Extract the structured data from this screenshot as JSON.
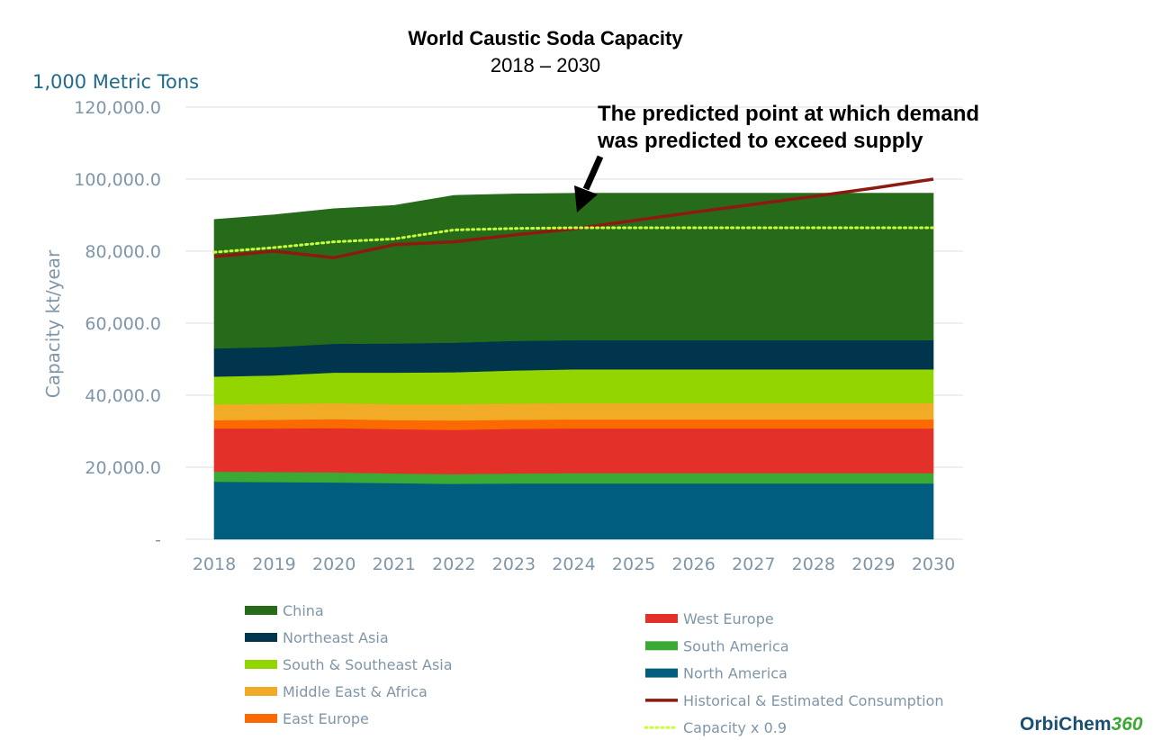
{
  "chart_data": {
    "type": "area",
    "title": "World Caustic Soda Capacity",
    "subtitle": "2018 – 2030",
    "units_label": "1,000 Metric Tons",
    "ylabel": "Capacity kt/year",
    "xlabel": "",
    "ylim": [
      0,
      120000
    ],
    "yticks": [
      0,
      20000,
      40000,
      60000,
      80000,
      100000,
      120000
    ],
    "ytick_labels": [
      "-",
      "20,000.0",
      "40,000.0",
      "60,000.0",
      "80,000.0",
      "100,000.0",
      "120,000.0"
    ],
    "x": [
      "2018",
      "2019",
      "2020",
      "2021",
      "2022",
      "2023",
      "2024",
      "2025",
      "2026",
      "2027",
      "2028",
      "2029",
      "2030"
    ],
    "grid": "horizontal",
    "stacked_series": [
      {
        "name": "North America",
        "color": "#005d7e",
        "values": [
          16000,
          15900,
          15800,
          15600,
          15400,
          15500,
          15500,
          15500,
          15500,
          15500,
          15500,
          15500,
          15500
        ]
      },
      {
        "name": "South America",
        "color": "#3aaa35",
        "values": [
          2800,
          2800,
          2800,
          2700,
          2700,
          2800,
          2900,
          2900,
          2900,
          2900,
          2900,
          2900,
          2900
        ]
      },
      {
        "name": "West Europe",
        "color": "#e3312a",
        "values": [
          12000,
          12100,
          12300,
          12300,
          12300,
          12400,
          12400,
          12400,
          12400,
          12400,
          12400,
          12400,
          12400
        ]
      },
      {
        "name": "East Europe",
        "color": "#fb6a00",
        "values": [
          2300,
          2400,
          2500,
          2500,
          2600,
          2500,
          2500,
          2500,
          2500,
          2500,
          2500,
          2500,
          2500
        ]
      },
      {
        "name": "Middle East & Africa",
        "color": "#f2ab26",
        "values": [
          4400,
          4400,
          4400,
          4400,
          4500,
          4500,
          4500,
          4500,
          4500,
          4500,
          4500,
          4500,
          4500
        ]
      },
      {
        "name": "South & Southeast Asia",
        "color": "#93d500",
        "values": [
          7700,
          7900,
          8500,
          8800,
          8900,
          9200,
          9400,
          9400,
          9400,
          9400,
          9400,
          9400,
          9400
        ]
      },
      {
        "name": "Northeast Asia",
        "color": "#00354e",
        "values": [
          7800,
          7900,
          8000,
          8100,
          8200,
          8200,
          8100,
          8100,
          8100,
          8100,
          8100,
          8100,
          8100
        ]
      },
      {
        "name": "China",
        "color": "#266b1a",
        "values": [
          35800,
          36700,
          37500,
          38300,
          40900,
          40800,
          40800,
          40800,
          40800,
          40800,
          40800,
          40800,
          40800
        ]
      }
    ],
    "lines": [
      {
        "name": "Historical & Estimated Consumption",
        "color": "#8c1a10",
        "style": "solid",
        "values": [
          78500,
          80000,
          78200,
          81800,
          82600,
          84500,
          86200,
          88500,
          90800,
          93000,
          95200,
          97500,
          100000
        ]
      },
      {
        "name": "Capacity x 0.9",
        "color": "#c8ff3c",
        "style": "dotted",
        "values": [
          79700,
          81000,
          82600,
          83400,
          85900,
          86300,
          86500,
          86500,
          86500,
          86500,
          86500,
          86500,
          86500
        ]
      }
    ],
    "legend": {
      "placement": "bottom",
      "left_column": [
        "China",
        "Northeast Asia",
        "South & Southeast Asia",
        "Middle East & Africa",
        "East Europe"
      ],
      "right_column": [
        "West Europe",
        "South America",
        "North America",
        "Historical & Estimated Consumption",
        "Capacity x 0.9"
      ]
    },
    "annotation": {
      "lines": [
        "The predicted point at which demand",
        "was predicted to exceed supply"
      ],
      "arrow_target_x": "2024",
      "arrow_target_y": 86500
    }
  },
  "logo": {
    "part1": "OrbiChem",
    "part2": "360"
  }
}
